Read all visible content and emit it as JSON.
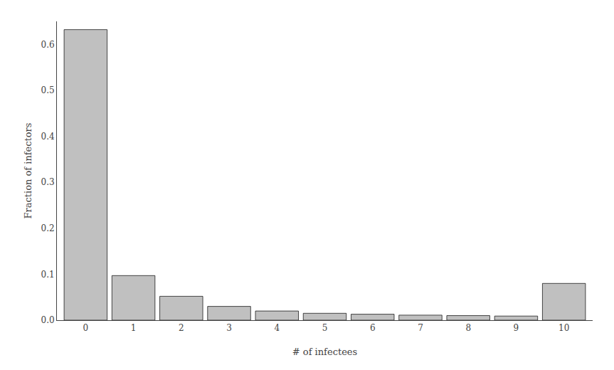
{
  "chart_data": {
    "type": "bar",
    "xlabel": "# of infectees",
    "ylabel": "Fraction of infectors",
    "x": [
      0,
      1,
      2,
      3,
      4,
      5,
      6,
      7,
      8,
      9,
      10
    ],
    "values": [
      0.632,
      0.097,
      0.052,
      0.03,
      0.02,
      0.015,
      0.013,
      0.011,
      0.01,
      0.009,
      0.08
    ],
    "color": "#c0c0c0",
    "xlim": [
      -0.6,
      10.6
    ],
    "ylim": [
      0,
      0.65
    ],
    "xticks": [
      0,
      1,
      2,
      3,
      4,
      5,
      6,
      7,
      8,
      9,
      10
    ],
    "yticks": [
      {
        "value": 0,
        "label": "0.0"
      },
      0.1,
      0.2,
      0.3,
      0.4,
      0.5,
      0.6
    ],
    "grid": false
  }
}
